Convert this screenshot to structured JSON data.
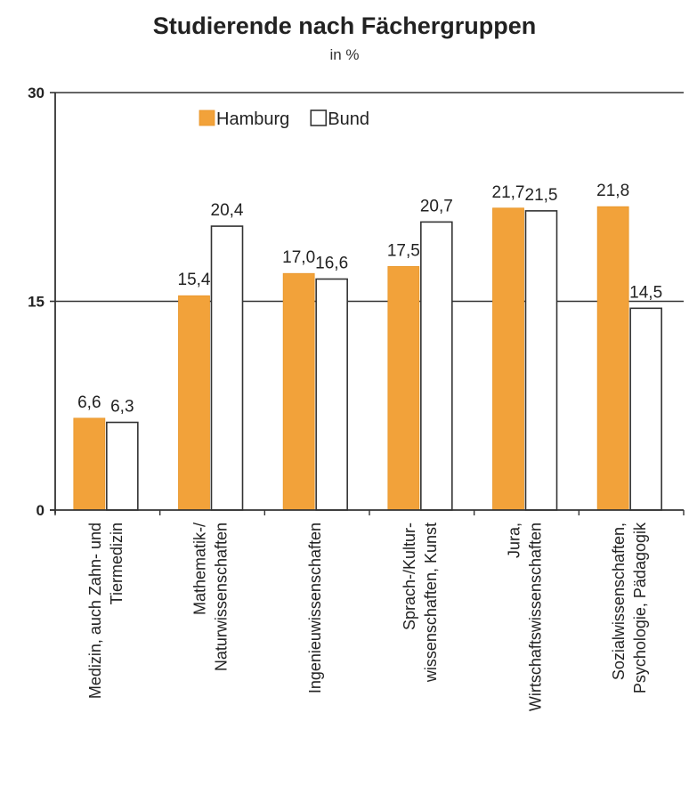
{
  "chart_data": {
    "type": "bar",
    "title": "Studierende nach Fächergruppen",
    "subtitle": "in %",
    "categories": [
      [
        "Medizin, auch Zahn- und",
        "Tiermedizin"
      ],
      [
        "Mathematik-/",
        "Naturwissenschaften"
      ],
      [
        "Ingenieuwissenschaften"
      ],
      [
        "Sprach-/Kultur-",
        "wissenschaften, Kunst"
      ],
      [
        "Jura,",
        "Wirtschaftswissenschaften"
      ],
      [
        "Sozialwissenschaften,",
        "Psychologie, Pädagogik"
      ]
    ],
    "series": [
      {
        "name": "Hamburg",
        "color": "#f2a23a",
        "values": [
          6.6,
          15.4,
          17.0,
          17.5,
          21.7,
          21.8
        ],
        "labels": [
          "6,6",
          "15,4",
          "17,0",
          "17,5",
          "21,7",
          "21,8"
        ]
      },
      {
        "name": "Bund",
        "color": "#ffffff",
        "values": [
          6.3,
          20.4,
          16.6,
          20.7,
          21.5,
          14.5
        ],
        "labels": [
          "6,3",
          "20,4",
          "16,6",
          "20,7",
          "21,5",
          "14,5"
        ]
      }
    ],
    "ylim": [
      0,
      30
    ],
    "yticks": [
      0,
      15,
      30
    ],
    "ytick_labels": [
      "0",
      "15",
      "30"
    ],
    "grid": true,
    "legend_position": "top-left"
  }
}
